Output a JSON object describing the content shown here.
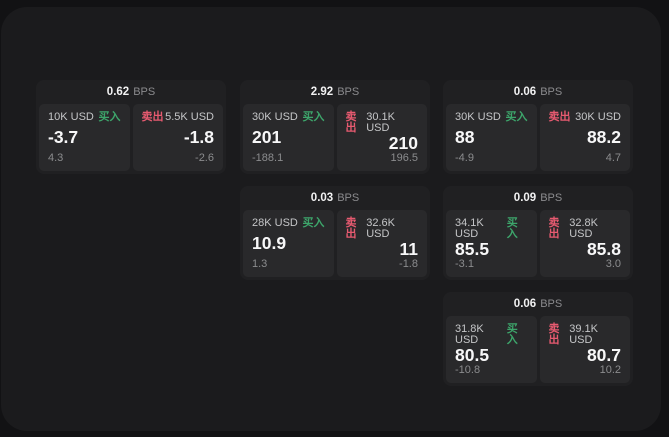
{
  "labels": {
    "bps_unit": "BPS",
    "buy": "买入",
    "sell": "卖出"
  },
  "colors": {
    "buy": "#3da56b",
    "sell": "#e75a70",
    "window_bg": "#1b1b1d",
    "card_bg": "#202022",
    "panel_bg": "#29292b"
  },
  "cards": [
    {
      "bps": "0.62",
      "col": 0,
      "row": 0,
      "buy": {
        "amount": "10K USD",
        "price": "-3.7",
        "delta": "4.3"
      },
      "sell": {
        "amount": "5.5K USD",
        "price": "-1.8",
        "delta": "-2.6"
      }
    },
    {
      "bps": "2.92",
      "col": 1,
      "row": 0,
      "buy": {
        "amount": "30K USD",
        "price": "201",
        "delta": "-188.1"
      },
      "sell": {
        "amount": "30.1K USD",
        "price": "210",
        "delta": "196.5"
      }
    },
    {
      "bps": "0.06",
      "col": 2,
      "row": 0,
      "buy": {
        "amount": "30K USD",
        "price": "88",
        "delta": "-4.9"
      },
      "sell": {
        "amount": "30K USD",
        "price": "88.2",
        "delta": "4.7"
      }
    },
    {
      "bps": "0.03",
      "col": 1,
      "row": 1,
      "buy": {
        "amount": "28K USD",
        "price": "10.9",
        "delta": "1.3"
      },
      "sell": {
        "amount": "32.6K USD",
        "price": "11",
        "delta": "-1.8"
      }
    },
    {
      "bps": "0.09",
      "col": 2,
      "row": 1,
      "buy": {
        "amount": "34.1K USD",
        "price": "85.5",
        "delta": "-3.1"
      },
      "sell": {
        "amount": "32.8K USD",
        "price": "85.8",
        "delta": "3.0"
      }
    },
    {
      "bps": "0.06",
      "col": 2,
      "row": 2,
      "buy": {
        "amount": "31.8K USD",
        "price": "80.5",
        "delta": "-10.8"
      },
      "sell": {
        "amount": "39.1K USD",
        "price": "80.7",
        "delta": "10.2"
      }
    }
  ]
}
